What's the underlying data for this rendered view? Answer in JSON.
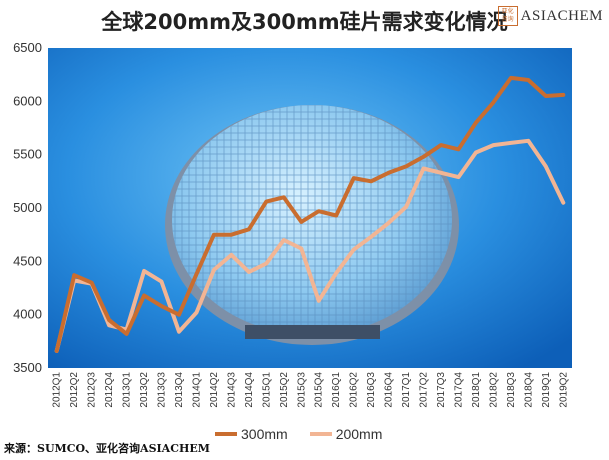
{
  "title": "全球200mm及300mm硅片需求变化情况",
  "logo": {
    "mark_text": "亚化咨询",
    "text": "ASIACHEM"
  },
  "source": "来源：SUMCO、亚化咨询ASIACHEM",
  "colors": {
    "s300": "#c96d2f",
    "s200": "#f2b594",
    "plot_bg": "#1b7fd6"
  },
  "chart_data": {
    "type": "line",
    "title": "全球200mm及300mm硅片需求变化情况",
    "xlabel": "",
    "ylabel": "",
    "ylim": [
      3500,
      6500
    ],
    "yticks": [
      3500,
      4000,
      4500,
      5000,
      5500,
      6000,
      6500
    ],
    "grid": false,
    "legend_position": "bottom",
    "categories": [
      "2012Q1",
      "2012Q2",
      "2012Q3",
      "2012Q4",
      "2013Q1",
      "2013Q2",
      "2013Q3",
      "2013Q4",
      "2014Q1",
      "2014Q2",
      "2014Q3",
      "2014Q4",
      "2015Q1",
      "2015Q2",
      "2015Q3",
      "2015Q4",
      "2016Q1",
      "2016Q2",
      "2016Q3",
      "2016Q4",
      "2017Q1",
      "2017Q2",
      "2017Q3",
      "2017Q4",
      "2018Q1",
      "2018Q2",
      "2018Q3",
      "2018Q4",
      "2019Q1",
      "2019Q2"
    ],
    "series": [
      {
        "name": "300mm",
        "color": "#c96d2f",
        "values": [
          3660,
          4370,
          4300,
          3950,
          3820,
          4180,
          4080,
          4000,
          4380,
          4750,
          4750,
          4800,
          5060,
          5100,
          4870,
          4970,
          4930,
          5280,
          5250,
          5330,
          5390,
          5480,
          5590,
          5550,
          5800,
          5990,
          6220,
          6200,
          6050,
          6060
        ]
      },
      {
        "name": "200mm",
        "color": "#f2b594",
        "values": [
          3660,
          4320,
          4290,
          3900,
          3860,
          4410,
          4310,
          3840,
          4020,
          4420,
          4560,
          4400,
          4480,
          4700,
          4620,
          4130,
          4390,
          4610,
          4730,
          4860,
          5010,
          5370,
          5330,
          5290,
          5520,
          5590,
          5610,
          5630,
          5390,
          5050
        ]
      }
    ]
  }
}
